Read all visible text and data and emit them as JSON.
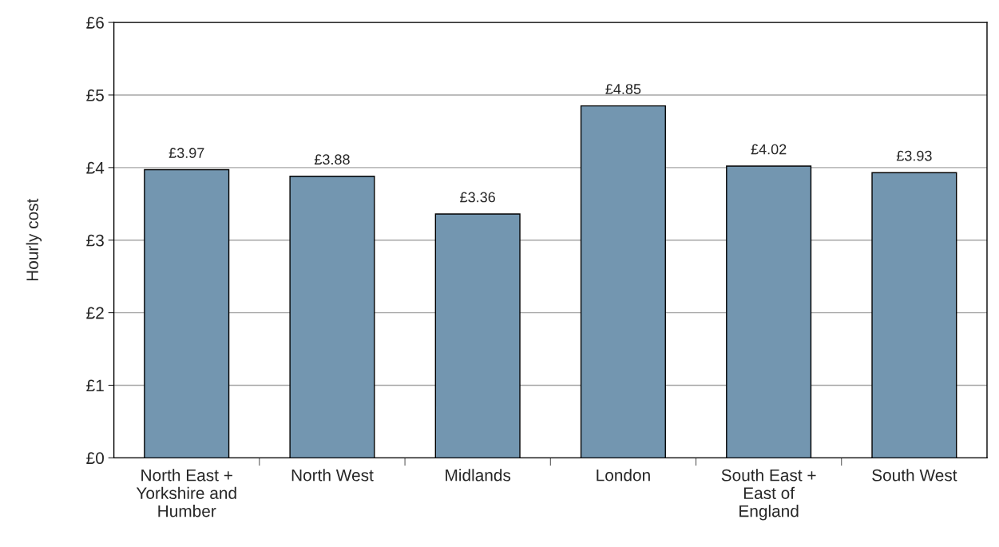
{
  "chart_data": {
    "type": "bar",
    "ylabel": "Hourly cost",
    "categories": [
      "North East +\nYorkshire and\nHumber",
      "North West",
      "Midlands",
      "London",
      "South East +\nEast of\nEngland",
      "South West"
    ],
    "values": [
      3.97,
      3.88,
      3.36,
      4.85,
      4.02,
      3.93
    ],
    "value_labels": [
      "£3.97",
      "£3.88",
      "£3.36",
      "£4.85",
      "£4.02",
      "£3.93"
    ],
    "color": "#7396b0",
    "ylim": [
      0,
      6
    ],
    "yticks": [
      {
        "value": 0,
        "label": "£0"
      },
      {
        "value": 1,
        "label": "£1"
      },
      {
        "value": 2,
        "label": "£2"
      },
      {
        "value": 3,
        "label": "£3"
      },
      {
        "value": 4,
        "label": "£4"
      },
      {
        "value": 5,
        "label": "£5"
      },
      {
        "value": 6,
        "label": "£6"
      }
    ],
    "grid": "y",
    "legend": false
  }
}
